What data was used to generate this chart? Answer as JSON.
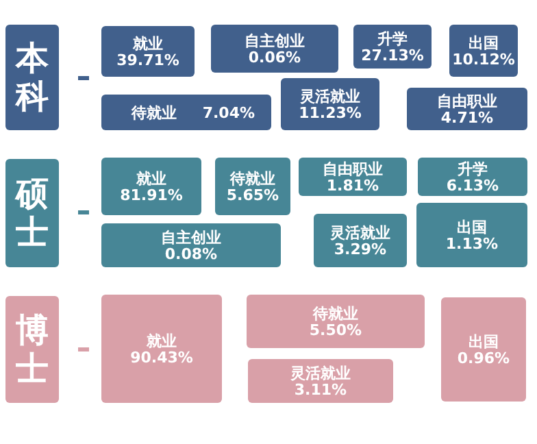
{
  "chart_data": [
    {
      "type": "other",
      "title": "本科",
      "color": "#41608c",
      "categories": [
        "就业",
        "自主创业",
        "升学",
        "出国",
        "待就业",
        "灵活就业",
        "自由职业"
      ],
      "values": [
        39.71,
        0.06,
        27.13,
        10.12,
        7.04,
        11.23,
        4.71
      ],
      "value_labels": [
        "39.71%",
        "0.06%",
        "27.13%",
        "10.12%",
        "7.04%",
        "11.23%",
        "4.71%"
      ]
    },
    {
      "type": "other",
      "title": "硕士",
      "color": "#478696",
      "categories": [
        "就业",
        "待就业",
        "自由职业",
        "升学",
        "自主创业",
        "灵活就业",
        "出国"
      ],
      "values": [
        81.91,
        5.65,
        1.81,
        6.13,
        0.08,
        3.29,
        1.13
      ],
      "value_labels": [
        "81.91%",
        "5.65%",
        "1.81%",
        "6.13%",
        "0.08%",
        "3.29%",
        "1.13%"
      ]
    },
    {
      "type": "other",
      "title": "博士",
      "color": "#d9a0a8",
      "categories": [
        "就业",
        "待就业",
        "灵活就业",
        "出国"
      ],
      "values": [
        90.43,
        5.5,
        3.11,
        0.96
      ],
      "value_labels": [
        "90.43%",
        "5.50%",
        "3.11%",
        "0.96%"
      ]
    }
  ]
}
